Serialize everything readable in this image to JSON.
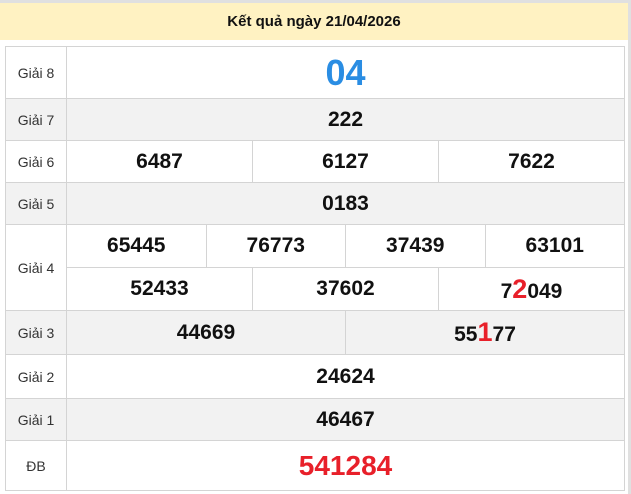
{
  "header": {
    "title": "Kết quả ngày 21/04/2026"
  },
  "colors": {
    "header_bg": "#fff2c2",
    "g8": "#2a8de3",
    "special": "#e8202a",
    "highlight": "#e8202a"
  },
  "prizes": {
    "g8": {
      "label": "Giải 8",
      "value": "04"
    },
    "g7": {
      "label": "Giải 7",
      "value": "222"
    },
    "g6": {
      "label": "Giải 6",
      "values": [
        "6487",
        "6127",
        "7622"
      ]
    },
    "g5": {
      "label": "Giải 5",
      "value": "0183"
    },
    "g4": {
      "label": "Giải 4",
      "values": [
        "65445",
        "76773",
        "37439",
        "63101",
        "52433",
        "37602"
      ],
      "last": {
        "pre": "7",
        "hl": "2",
        "post": "049"
      }
    },
    "g3": {
      "label": "Giải 3",
      "first": "44669",
      "second": {
        "pre": "55",
        "hl": "1",
        "post": "77"
      }
    },
    "g2": {
      "label": "Giải 2",
      "value": "24624"
    },
    "g1": {
      "label": "Giải 1",
      "value": "46467"
    },
    "db": {
      "label": "ĐB",
      "value": "541284"
    }
  }
}
